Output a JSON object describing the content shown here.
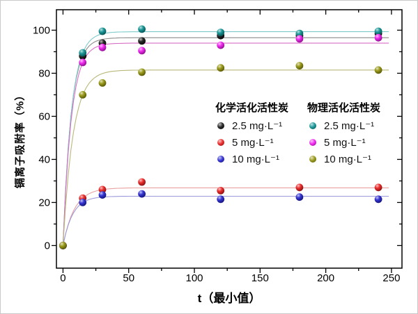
{
  "figure": {
    "background": "#ffffff",
    "border_color": "#c9c9c9"
  },
  "chart_data": {
    "type": "scatter",
    "title": "",
    "xlabel": "t（最小值）",
    "ylabel": "镉离子吸附率（%）",
    "xlim": [
      -5,
      258
    ],
    "ylim": [
      -10.5,
      109.5
    ],
    "x_major_ticks": [
      0,
      50,
      100,
      150,
      200,
      250
    ],
    "x_minor_ticks": [
      25,
      75,
      125,
      175,
      225
    ],
    "y_major_ticks": [
      0,
      20,
      40,
      60,
      80,
      100
    ],
    "y_minor_ticks": [
      10,
      30,
      50,
      70,
      90
    ],
    "grid": false,
    "legend_position": "inside center-right",
    "x": [
      0,
      15,
      30,
      60,
      120,
      180,
      240
    ],
    "series": [
      {
        "group": "化学活化活性炭",
        "label": "2.5 mg·L⁻¹",
        "color": "#0a0a0a",
        "line_color": "#8c8c8c",
        "fit": {
          "model": "y = A·(1-exp(-k·t))",
          "plateau": 96.5,
          "rate": 0.162
        },
        "values": [
          0,
          88,
          94,
          95,
          97.5,
          97.5,
          98.5
        ]
      },
      {
        "group": "化学活化活性炭",
        "label": "5 mg·L⁻¹",
        "color": "#e81414",
        "line_color": "#e8a0a0",
        "fit": {
          "model": "y = A·(1-exp(-k·t))",
          "plateau": 26.8,
          "rate": 0.115
        },
        "values": [
          0,
          22,
          26,
          29.5,
          25.5,
          27,
          27
        ]
      },
      {
        "group": "化学活化活性炭",
        "label": "10 mg·L⁻¹",
        "color": "#1c1ccd",
        "line_color": "#9a9ada",
        "fit": {
          "model": "y = A·(1-exp(-k·t))",
          "plateau": 22.9,
          "rate": 0.136
        },
        "values": [
          0,
          20,
          23.5,
          24,
          21.5,
          22.5,
          21.5
        ]
      },
      {
        "group": "物理活化活性炭",
        "label": "2.5 mg·L⁻¹",
        "color": "#008b8b",
        "line_color": "#7ecaca",
        "fit": {
          "model": "y = A·(1-exp(-k·t))",
          "plateau": 99.3,
          "rate": 0.154
        },
        "values": [
          0,
          89.5,
          99.5,
          100.5,
          99,
          98.5,
          99.5
        ]
      },
      {
        "group": "物理活化活性炭",
        "label": "5 mg·L⁻¹",
        "color": "#ee10ee",
        "line_color": "#d86ec4",
        "fit": {
          "model": "y = A·(1-exp(-k·t))",
          "plateau": 94.0,
          "rate": 0.156
        },
        "values": [
          0,
          85,
          92,
          90.5,
          93,
          96,
          96.5
        ]
      },
      {
        "group": "物理活化活性炭",
        "label": "10 mg·L⁻¹",
        "color": "#8f8f00",
        "line_color": "#b8b878",
        "fit": {
          "model": "y = A·(1-exp(-k·t))",
          "plateau": 81.5,
          "rate": 0.13
        },
        "values": [
          0,
          70,
          75.5,
          80.5,
          82.5,
          83.5,
          81.5
        ]
      }
    ],
    "legend": {
      "groups": [
        {
          "title": "化学活化活性炭",
          "items": [
            "2.5 mg·L⁻¹",
            "5 mg·L⁻¹",
            "10 mg·L⁻¹"
          ]
        },
        {
          "title": "物理活化活性炭",
          "items": [
            "2.5 mg·L⁻¹",
            "5 mg·L⁻¹",
            "10 mg·L⁻¹"
          ]
        }
      ]
    }
  }
}
